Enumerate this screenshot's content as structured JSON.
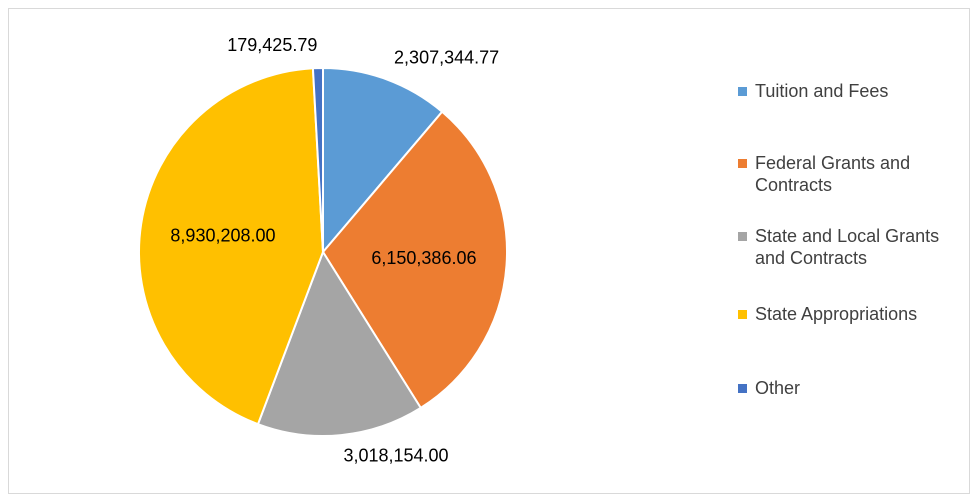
{
  "chart_data": {
    "type": "pie",
    "categories": [
      "Tuition and Fees",
      "Federal Grants and Contracts",
      "State and Local Grants and Contracts",
      "State Appropriations",
      "Other"
    ],
    "values": [
      2307344.77,
      6150386.06,
      3018154.0,
      8930208.0,
      179425.79
    ],
    "value_labels": [
      "2,307,344.77",
      "6,150,386.06",
      "3,018,154.00",
      "8,930,208.00",
      "179,425.79"
    ],
    "colors": [
      "#5b9bd5",
      "#ed7d31",
      "#a5a5a5",
      "#ffc000",
      "#4472c4"
    ],
    "legend": "right"
  }
}
